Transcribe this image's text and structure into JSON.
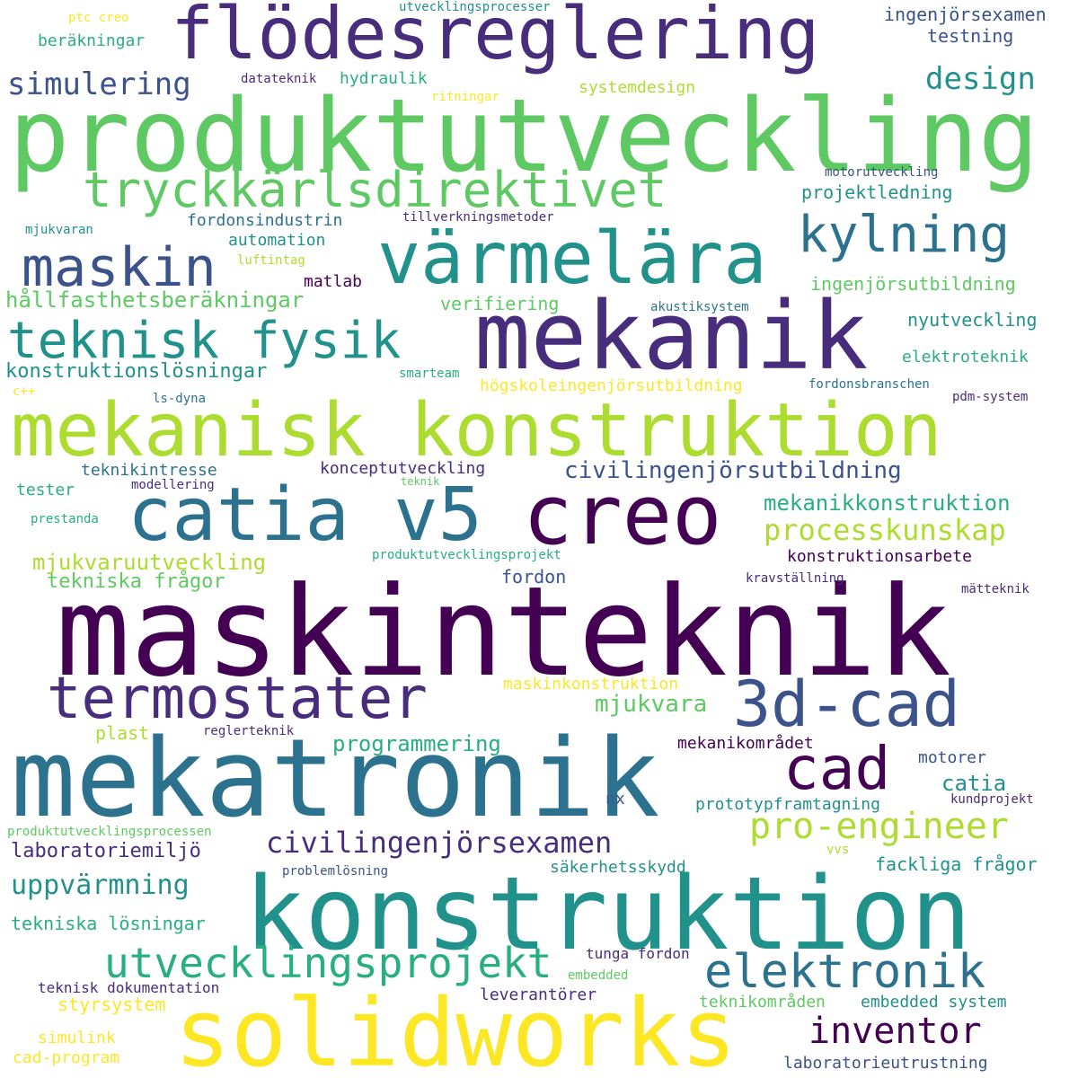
{
  "words": [
    {
      "text": "maskinteknik",
      "color": "#440154"
    },
    {
      "text": "produktutveckling",
      "color": "#5ec962"
    },
    {
      "text": "mekatronik",
      "color": "#2c728e"
    },
    {
      "text": "konstruktion",
      "color": "#21918c"
    },
    {
      "text": "flödesreglering",
      "color": "#472d7b"
    },
    {
      "text": "mekanisk konstruktion",
      "color": "#addc30"
    },
    {
      "text": "solidworks",
      "color": "#fde725"
    },
    {
      "text": "mekanik",
      "color": "#472d7b"
    },
    {
      "text": "catia v5",
      "color": "#2c728e"
    },
    {
      "text": "creo",
      "color": "#440154"
    },
    {
      "text": "värmelära",
      "color": "#21918c"
    },
    {
      "text": "tryckkärlsdirektivet",
      "color": "#5ec962"
    },
    {
      "text": "teknisk fysik",
      "color": "#21918c"
    },
    {
      "text": "termostater",
      "color": "#472d7b"
    },
    {
      "text": "3d-cad",
      "color": "#3b528b"
    },
    {
      "text": "maskin",
      "color": "#3b528b"
    },
    {
      "text": "kylning",
      "color": "#2c728e"
    },
    {
      "text": "cad",
      "color": "#440154"
    },
    {
      "text": "elektronik",
      "color": "#2c728e"
    },
    {
      "text": "utvecklingsprojekt",
      "color": "#28ae80"
    },
    {
      "text": "pro-engineer",
      "color": "#addc30"
    },
    {
      "text": "civilingenjörsexamen",
      "color": "#472d7b"
    },
    {
      "text": "inventor",
      "color": "#440154"
    },
    {
      "text": "simulering",
      "color": "#3b528b"
    },
    {
      "text": "design",
      "color": "#21918c"
    },
    {
      "text": "processkunskap",
      "color": "#addc30"
    },
    {
      "text": "civilingenjörsutbildning",
      "color": "#3b528b"
    },
    {
      "text": "mekanikkonstruktion",
      "color": "#28ae80"
    },
    {
      "text": "hållfasthetsberäkningar",
      "color": "#5ec962"
    },
    {
      "text": "konstruktionslösningar",
      "color": "#21918c"
    },
    {
      "text": "mjukvaruutveckling",
      "color": "#addc30"
    },
    {
      "text": "tekniska frågor",
      "color": "#5ec962"
    },
    {
      "text": "uppvärmning",
      "color": "#21918c"
    },
    {
      "text": "laboratoriemiljö",
      "color": "#472d7b"
    },
    {
      "text": "tekniska lösningar",
      "color": "#28ae80"
    },
    {
      "text": "programmering",
      "color": "#28ae80"
    },
    {
      "text": "mjukvara",
      "color": "#5ec962"
    },
    {
      "text": "catia",
      "color": "#21918c"
    },
    {
      "text": "fackliga frågor",
      "color": "#21918c"
    },
    {
      "text": "ingenjörsexamen",
      "color": "#3b528b"
    },
    {
      "text": "testning",
      "color": "#3b528b"
    },
    {
      "text": "beräkningar",
      "color": "#28ae80"
    },
    {
      "text": "hydraulik",
      "color": "#28ae80"
    },
    {
      "text": "systemdesign",
      "color": "#addc30"
    },
    {
      "text": "ptc creo",
      "color": "#fde725"
    },
    {
      "text": "utvecklingsprocesser",
      "color": "#21918c"
    },
    {
      "text": "datateknik",
      "color": "#472d7b"
    },
    {
      "text": "ritningar",
      "color": "#fde725"
    },
    {
      "text": "motorutveckling",
      "color": "#3b528b"
    },
    {
      "text": "projektledning",
      "color": "#21918c"
    },
    {
      "text": "fordonsindustrin",
      "color": "#2c728e"
    },
    {
      "text": "tillverkningsmetoder",
      "color": "#472d7b"
    },
    {
      "text": "mjukvaran",
      "color": "#21918c"
    },
    {
      "text": "automation",
      "color": "#21918c"
    },
    {
      "text": "luftintag",
      "color": "#addc30"
    },
    {
      "text": "matlab",
      "color": "#440154"
    },
    {
      "text": "ingenjörsutbildning",
      "color": "#5ec962"
    },
    {
      "text": "verifiering",
      "color": "#5ec962"
    },
    {
      "text": "akustiksystem",
      "color": "#2c728e"
    },
    {
      "text": "nyutveckling",
      "color": "#21918c"
    },
    {
      "text": "elektroteknik",
      "color": "#28ae80"
    },
    {
      "text": "smarteam",
      "color": "#28ae80"
    },
    {
      "text": "c++",
      "color": "#fde725"
    },
    {
      "text": "ls-dyna",
      "color": "#2c728e"
    },
    {
      "text": "högskoleingenjörsutbildning",
      "color": "#fde725"
    },
    {
      "text": "fordonsbranschen",
      "color": "#2c728e"
    },
    {
      "text": "pdm-system",
      "color": "#472d7b"
    },
    {
      "text": "teknikintresse",
      "color": "#2c728e"
    },
    {
      "text": "konceptutveckling",
      "color": "#472d7b"
    },
    {
      "text": "tester",
      "color": "#28ae80"
    },
    {
      "text": "modellering",
      "color": "#472d7b"
    },
    {
      "text": "teknik",
      "color": "#5ec962"
    },
    {
      "text": "prestanda",
      "color": "#28ae80"
    },
    {
      "text": "produktutvecklingsprojekt",
      "color": "#28ae80"
    },
    {
      "text": "konstruktionsarbete",
      "color": "#440154"
    },
    {
      "text": "fordon",
      "color": "#3b528b"
    },
    {
      "text": "kravställning",
      "color": "#472d7b"
    },
    {
      "text": "mätteknik",
      "color": "#472d7b"
    },
    {
      "text": "maskinkonstruktion",
      "color": "#fde725"
    },
    {
      "text": "plast",
      "color": "#addc30"
    },
    {
      "text": "reglerteknik",
      "color": "#472d7b"
    },
    {
      "text": "mekanikområdet",
      "color": "#440154"
    },
    {
      "text": "motorer",
      "color": "#3b528b"
    },
    {
      "text": "nx",
      "color": "#3b528b"
    },
    {
      "text": "prototypframtagning",
      "color": "#21918c"
    },
    {
      "text": "kundprojekt",
      "color": "#472d7b"
    },
    {
      "text": "produktutvecklingsprocessen",
      "color": "#5ec962"
    },
    {
      "text": "vvs",
      "color": "#addc30"
    },
    {
      "text": "problemlösning",
      "color": "#3b528b"
    },
    {
      "text": "säkerhetsskydd",
      "color": "#21918c"
    },
    {
      "text": "tunga fordon",
      "color": "#472d7b"
    },
    {
      "text": "embedded",
      "color": "#5ec962"
    },
    {
      "text": "teknisk dokumentation",
      "color": "#472d7b"
    },
    {
      "text": "leverantörer",
      "color": "#472d7b"
    },
    {
      "text": "styrsystem",
      "color": "#fde725"
    },
    {
      "text": "teknikområden",
      "color": "#5ec962"
    },
    {
      "text": "embedded system",
      "color": "#21918c"
    },
    {
      "text": "simulink",
      "color": "#fde725"
    },
    {
      "text": "cad-program",
      "color": "#fde725"
    },
    {
      "text": "laboratorieutrustning",
      "color": "#3b528b"
    }
  ]
}
